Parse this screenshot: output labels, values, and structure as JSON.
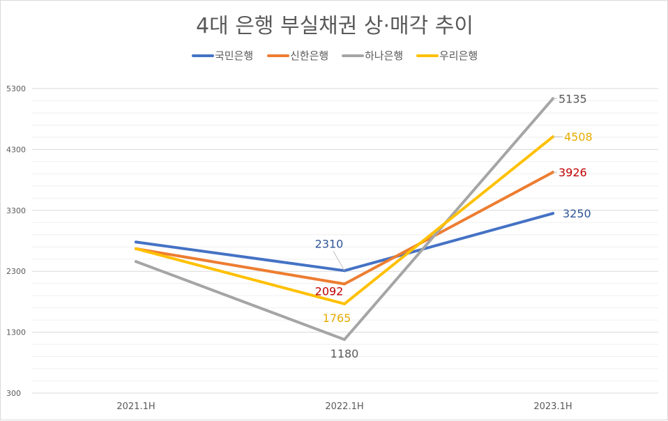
{
  "chart_data": {
    "type": "line",
    "title": "4대 은행 부실채권 상·매각 추이",
    "categories": [
      "2021.1H",
      "2022.1H",
      "2023.1H"
    ],
    "ylim": [
      300,
      5300
    ],
    "yticks": [
      300,
      1300,
      2300,
      3300,
      4300,
      5300
    ],
    "minor_grid_step": 200,
    "grid": true,
    "legend_position": "top",
    "series": [
      {
        "name": "국민은행",
        "color": "#4472c4",
        "values": [
          2780,
          2310,
          3250
        ],
        "labels": [
          null,
          "2310",
          "3250"
        ],
        "label_color": "#2f5597"
      },
      {
        "name": "신한은행",
        "color": "#ed7d31",
        "values": [
          2670,
          2092,
          3926
        ],
        "labels": [
          null,
          "2092",
          "3926"
        ],
        "label_color": "#c00000"
      },
      {
        "name": "하나은행",
        "color": "#a5a5a5",
        "values": [
          2460,
          1180,
          5135
        ],
        "labels": [
          null,
          "1180",
          "5135"
        ],
        "label_color": "#595959"
      },
      {
        "name": "우리은행",
        "color": "#ffc000",
        "values": [
          2670,
          1765,
          4508
        ],
        "labels": [
          null,
          "1765",
          "4508"
        ],
        "label_color": "#e6ac00"
      }
    ]
  }
}
